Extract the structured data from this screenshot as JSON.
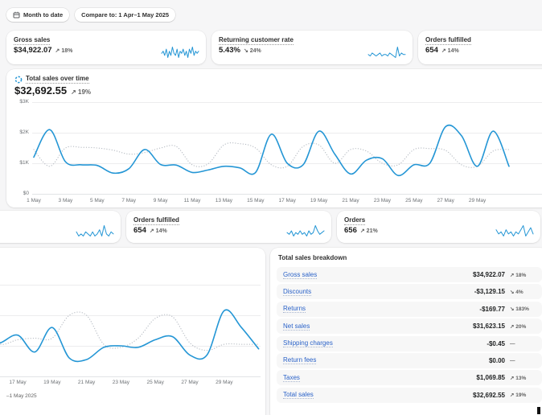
{
  "colors": {
    "accent_blue": "#2496d5",
    "compare_line": "#b9bec5",
    "link_blue": "#2a62c8",
    "page_bg": "#f6f6f7"
  },
  "topbar": {
    "date_button": "Month to date",
    "compare_button": "Compare to: 1 Apr–1 May 2025"
  },
  "cards_top": [
    {
      "title": "Gross sales",
      "value": "$34,922.07",
      "delta": "↗ 18%",
      "spark": [
        4,
        5,
        3,
        6,
        2,
        5,
        3,
        7,
        4,
        3,
        6,
        2,
        5,
        4,
        6,
        3,
        5,
        2,
        6,
        4,
        7,
        3,
        5,
        4,
        5
      ]
    },
    {
      "title": "Returning customer rate",
      "value": "5.43%",
      "delta": "↘ 24%",
      "spark": [
        4,
        3,
        5,
        4,
        3,
        4,
        5,
        3,
        4,
        4,
        3,
        5,
        4,
        3,
        2,
        9,
        3,
        5,
        4,
        4
      ]
    },
    {
      "title": "Orders fulfilled",
      "value": "654",
      "delta": "↗ 14%"
    }
  ],
  "total_sales_header": {
    "title": "Total sales over time",
    "value": "$32,692.55",
    "delta": "↗ 19%"
  },
  "cards_mid": [
    {
      "spark": [
        5,
        3,
        4,
        3,
        5,
        4,
        3,
        5,
        3,
        4,
        6,
        3,
        8,
        4,
        3,
        5,
        4
      ]
    },
    {
      "title": "Orders fulfilled",
      "value": "654",
      "delta": "↗ 14%",
      "spark": [
        4,
        3,
        5,
        2,
        4,
        3,
        5,
        3,
        4,
        2,
        5,
        3,
        4,
        8,
        5,
        3,
        4,
        5
      ]
    },
    {
      "title": "Orders",
      "value": "656",
      "delta": "↗ 21%",
      "spark": [
        6,
        4,
        5,
        3,
        6,
        4,
        5,
        3,
        5,
        4,
        6,
        8,
        3,
        5,
        7,
        4
      ]
    }
  ],
  "breakdown": {
    "title": "Total sales breakdown",
    "rows": [
      {
        "label": "Gross sales",
        "value": "$34,922.07",
        "delta": "↗ 18%"
      },
      {
        "label": "Discounts",
        "value": "-$3,129.15",
        "delta": "↘ 4%"
      },
      {
        "label": "Returns",
        "value": "-$169.77",
        "delta": "↘ 183%"
      },
      {
        "label": "Net sales",
        "value": "$31,623.15",
        "delta": "↗ 20%"
      },
      {
        "label": "Shipping charges",
        "value": "-$0.45",
        "delta": "—"
      },
      {
        "label": "Return fees",
        "value": "$0.00",
        "delta": "—"
      },
      {
        "label": "Taxes",
        "value": "$1,069.85",
        "delta": "↗ 13%"
      },
      {
        "label": "Total sales",
        "value": "$32,692.55",
        "delta": "↗ 19%"
      }
    ]
  },
  "bottom_chart": {
    "legend_partial": "–1 May 2025"
  },
  "chart_data": [
    {
      "type": "line",
      "title": "Total sales over time",
      "value_label": "$32,692.55",
      "x": "days 1–31 May 2025",
      "x_tick_labels": [
        "1 May",
        "3 May",
        "5 May",
        "7 May",
        "9 May",
        "11 May",
        "13 May",
        "15 May",
        "17 May",
        "19 May",
        "21 May",
        "23 May",
        "25 May",
        "27 May",
        "29 May"
      ],
      "y_tick_labels": [
        "$0",
        "$1K",
        "$2K",
        "$3K"
      ],
      "ylim": [
        0,
        3000
      ],
      "grid": "horizontal",
      "series": [
        {
          "name": "current_period",
          "style": "solid",
          "values": [
            1200,
            2100,
            1050,
            950,
            930,
            680,
            820,
            1450,
            960,
            940,
            700,
            780,
            900,
            850,
            700,
            1950,
            1000,
            950,
            2050,
            1300,
            650,
            1100,
            1150,
            600,
            950,
            1000,
            2200,
            1900,
            900,
            2050,
            900
          ]
        },
        {
          "name": "comparison_period",
          "style": "dotted",
          "values": [
            1450,
            900,
            1500,
            1520,
            1500,
            1430,
            1300,
            1350,
            1500,
            1550,
            950,
            980,
            1600,
            1640,
            1500,
            950,
            900,
            1550,
            1600,
            1000,
            1450,
            1400,
            1000,
            950,
            1450,
            1480,
            1420,
            950,
            900,
            1400,
            1450
          ]
        }
      ]
    },
    {
      "type": "line",
      "title": "",
      "x": "days 15–31 May 2025 (card cropped at left screen edge)",
      "x_tick_labels": [
        "17 May",
        "19 May",
        "21 May",
        "23 May",
        "25 May",
        "27 May",
        "29 May"
      ],
      "ylim": [
        0,
        3000
      ],
      "grid": "horizontal",
      "series": [
        {
          "name": "current_period",
          "style": "solid",
          "values": [
            1000,
            1100,
            1350,
            800,
            1600,
            600,
            550,
            950,
            1000,
            950,
            1200,
            1300,
            700,
            700,
            2150,
            1600,
            900
          ]
        },
        {
          "name": "comparison_period",
          "style": "dotted",
          "values": [
            1400,
            1050,
            1200,
            1250,
            1250,
            2000,
            2000,
            1050,
            950,
            1250,
            1900,
            1950,
            1100,
            850,
            1050,
            1050,
            1050
          ]
        }
      ]
    }
  ]
}
